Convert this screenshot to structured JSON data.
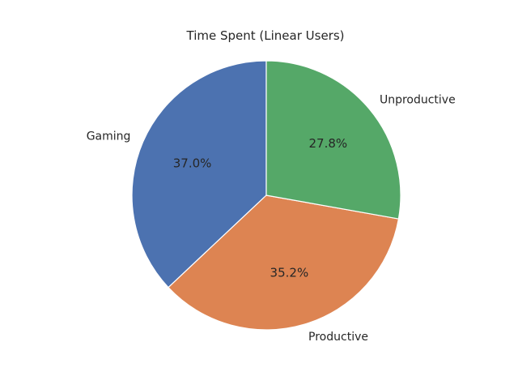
{
  "chart_data": {
    "type": "pie",
    "title": "Time Spent (Linear Users)",
    "categories": [
      "Gaming",
      "Productive",
      "Unproductive"
    ],
    "values": [
      37.0,
      35.2,
      27.8
    ],
    "value_labels": [
      "37.0%",
      "35.2%",
      "27.8%"
    ],
    "colors": [
      "#4c72b0",
      "#dd8452",
      "#55a868"
    ],
    "start_angle": 90,
    "direction": "counterclockwise",
    "legend": "none"
  }
}
